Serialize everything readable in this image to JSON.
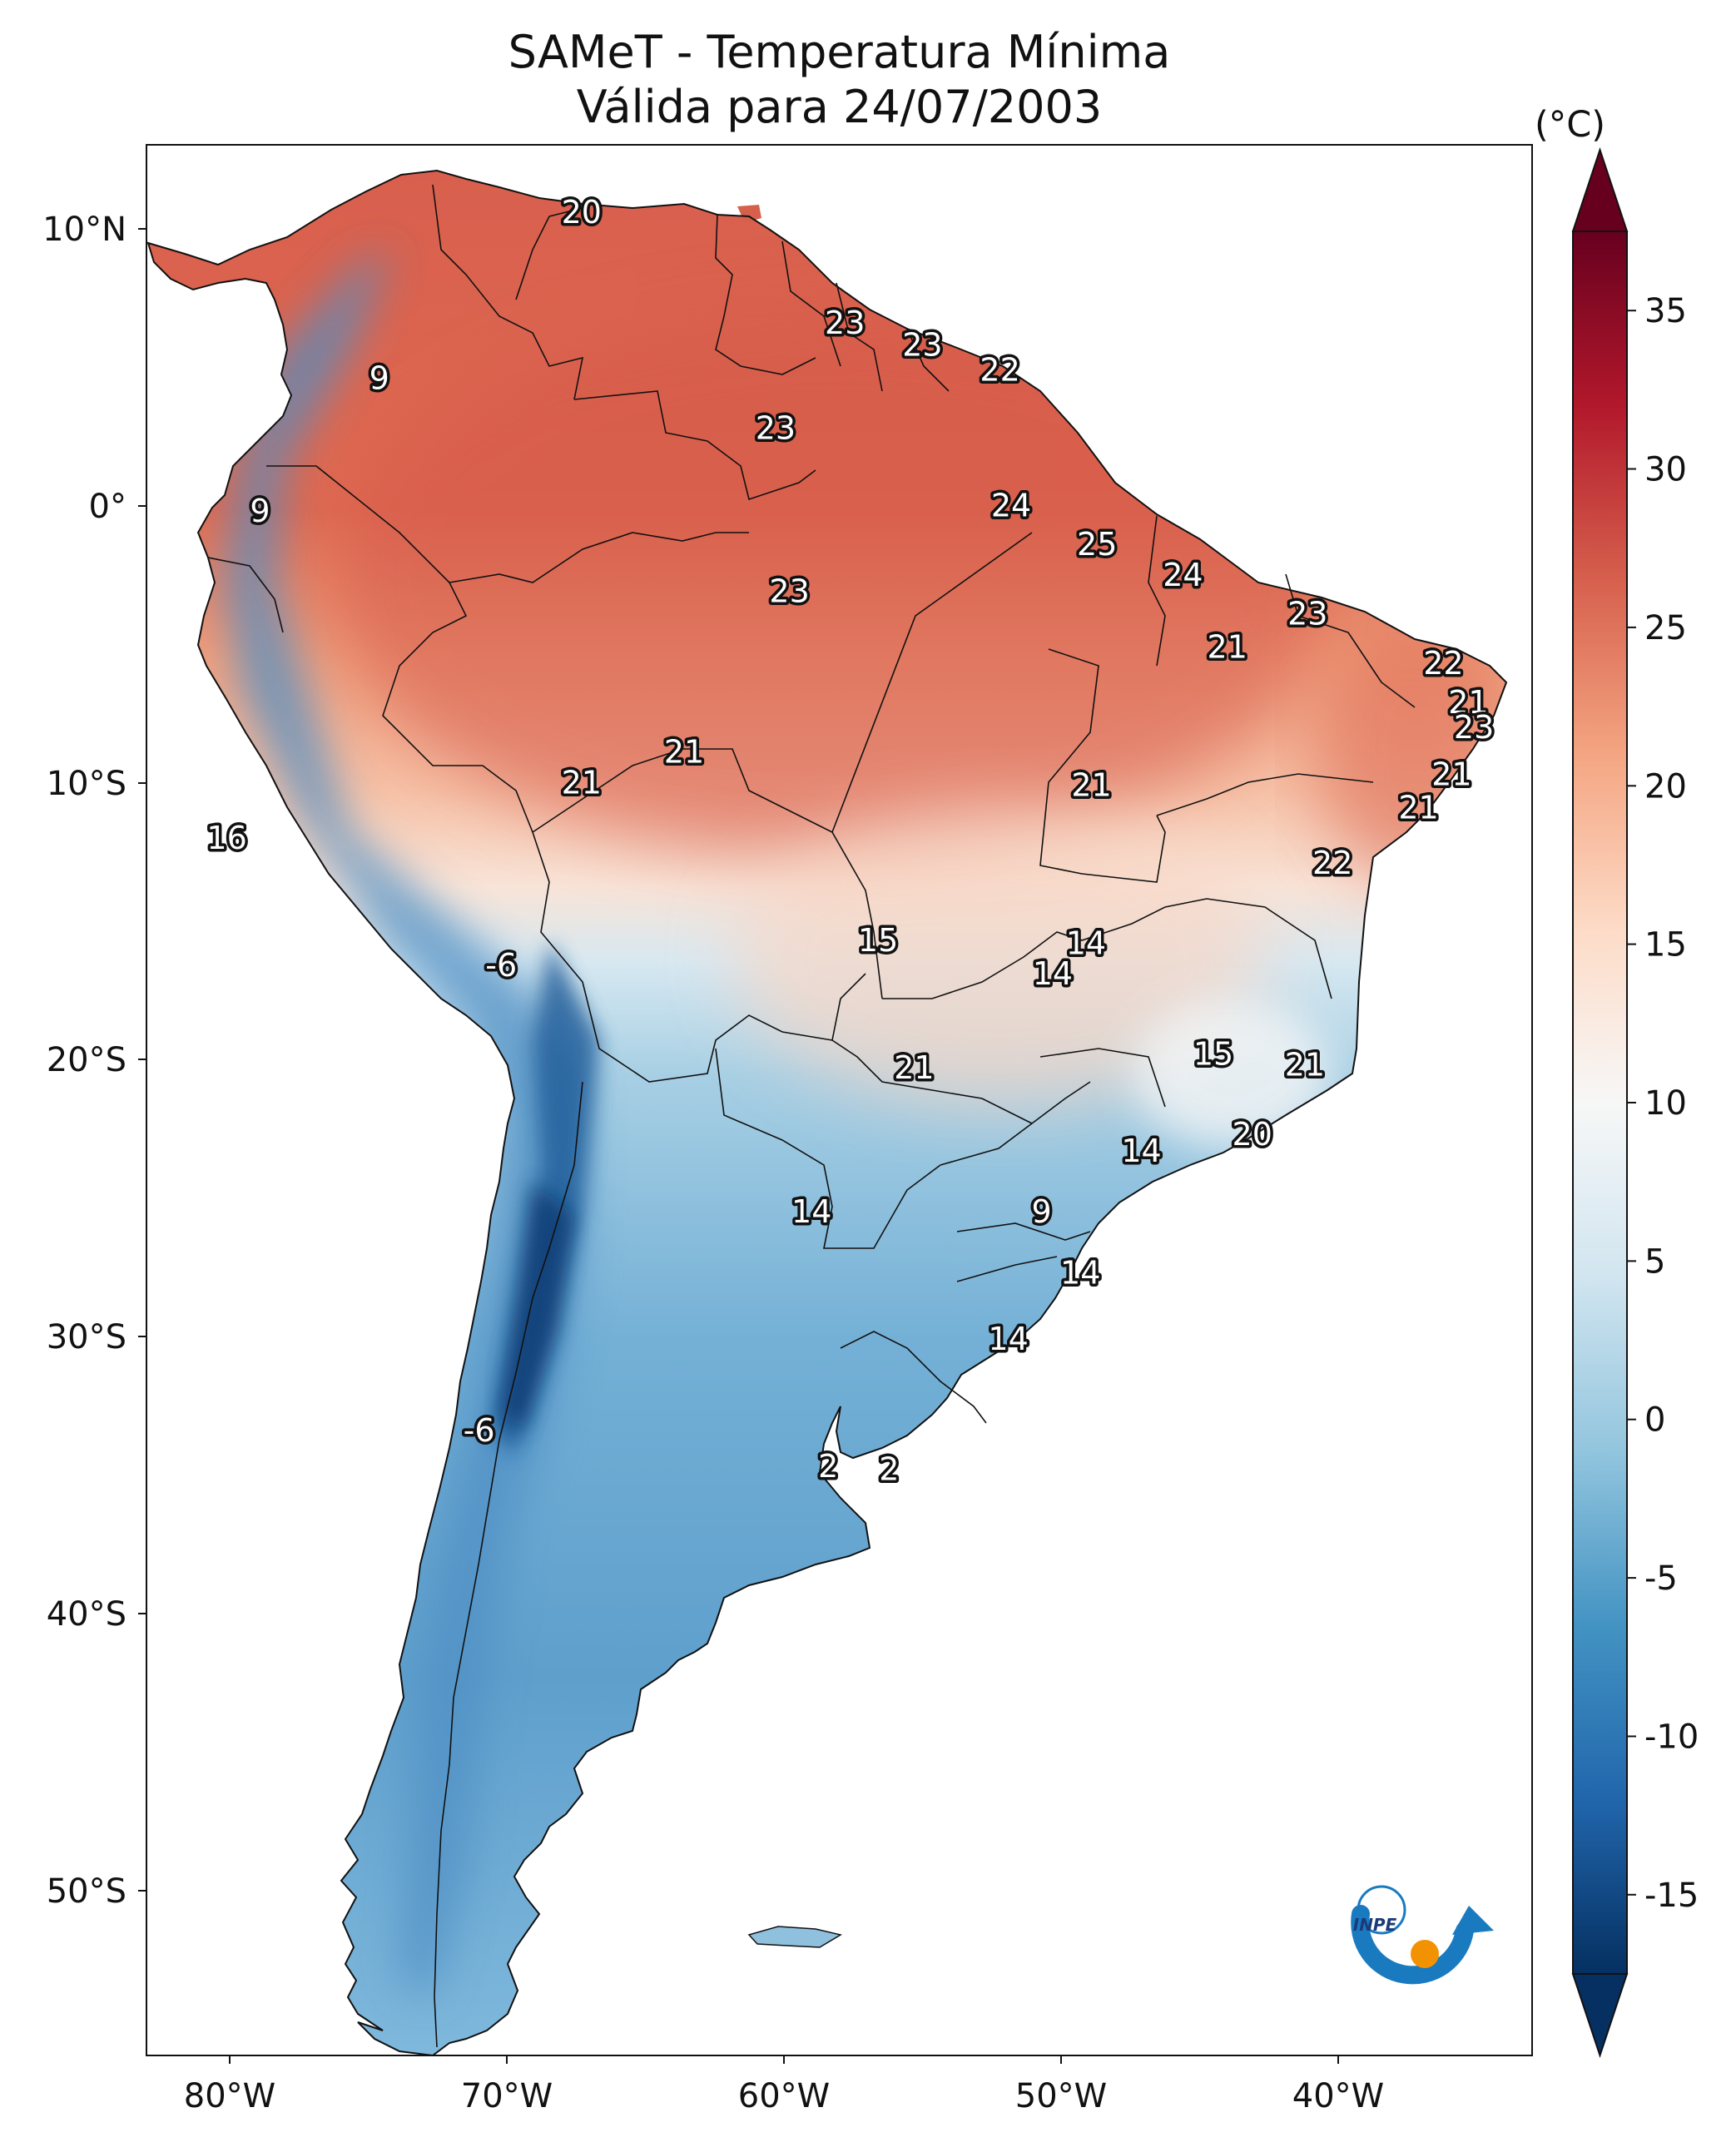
{
  "title_line1": "SAMeT - Temperatura Mínima",
  "title_line2": "Válida para 24/07/2003",
  "colorbar": {
    "unit": "(°C)",
    "ticks": [
      "35",
      "30",
      "25",
      "20",
      "15",
      "10",
      "5",
      "0",
      "-5",
      "-10",
      "-15"
    ],
    "colors": [
      "#053061",
      "#2166ac",
      "#4393c3",
      "#92c5de",
      "#d1e5f0",
      "#f7f7f7",
      "#fddbc7",
      "#f4a582",
      "#d6604d",
      "#b2182b",
      "#67001f"
    ]
  },
  "axes": {
    "lon_ticks": [
      "80°W",
      "70°W",
      "60°W",
      "50°W",
      "40°W"
    ],
    "lat_ticks": [
      "10°N",
      "0°",
      "10°S",
      "20°S",
      "30°S",
      "40°S",
      "50°S"
    ]
  },
  "map": {
    "lon_range": [
      -83,
      -33
    ],
    "lat_range": [
      -56,
      13
    ],
    "labels": [
      {
        "lon": -67.3,
        "lat": 10.6,
        "text": "20"
      },
      {
        "lon": -74.6,
        "lat": 4.6,
        "text": "9"
      },
      {
        "lon": -57.8,
        "lat": 6.6,
        "text": "23"
      },
      {
        "lon": -55.0,
        "lat": 5.8,
        "text": "23"
      },
      {
        "lon": -52.2,
        "lat": 4.9,
        "text": "22"
      },
      {
        "lon": -60.3,
        "lat": 2.8,
        "text": "23"
      },
      {
        "lon": -78.9,
        "lat": -0.2,
        "text": "9"
      },
      {
        "lon": -51.8,
        "lat": 0.0,
        "text": "24"
      },
      {
        "lon": -48.7,
        "lat": -1.4,
        "text": "25"
      },
      {
        "lon": -45.6,
        "lat": -2.5,
        "text": "24"
      },
      {
        "lon": -59.8,
        "lat": -3.1,
        "text": "23"
      },
      {
        "lon": -41.1,
        "lat": -3.9,
        "text": "23"
      },
      {
        "lon": -44.0,
        "lat": -5.1,
        "text": "21"
      },
      {
        "lon": -36.2,
        "lat": -5.7,
        "text": "22"
      },
      {
        "lon": -35.3,
        "lat": -7.1,
        "text": "21"
      },
      {
        "lon": -35.1,
        "lat": -8.0,
        "text": "23"
      },
      {
        "lon": -63.6,
        "lat": -8.9,
        "text": "21"
      },
      {
        "lon": -67.3,
        "lat": -10.0,
        "text": "21"
      },
      {
        "lon": -48.9,
        "lat": -10.1,
        "text": "21"
      },
      {
        "lon": -35.9,
        "lat": -9.7,
        "text": "21"
      },
      {
        "lon": -37.1,
        "lat": -10.9,
        "text": "21"
      },
      {
        "lon": -40.2,
        "lat": -12.9,
        "text": "22"
      },
      {
        "lon": -80.1,
        "lat": -12.0,
        "text": "16"
      },
      {
        "lon": -56.6,
        "lat": -15.7,
        "text": "15"
      },
      {
        "lon": -70.2,
        "lat": -16.6,
        "text": "-6"
      },
      {
        "lon": -49.1,
        "lat": -15.8,
        "text": "14"
      },
      {
        "lon": -50.3,
        "lat": -16.9,
        "text": "14"
      },
      {
        "lon": -44.5,
        "lat": -19.8,
        "text": "15"
      },
      {
        "lon": -55.3,
        "lat": -20.3,
        "text": "21"
      },
      {
        "lon": -41.2,
        "lat": -20.2,
        "text": "21"
      },
      {
        "lon": -43.1,
        "lat": -22.7,
        "text": "20"
      },
      {
        "lon": -47.1,
        "lat": -23.3,
        "text": "14"
      },
      {
        "lon": -59.0,
        "lat": -25.5,
        "text": "14"
      },
      {
        "lon": -50.7,
        "lat": -25.5,
        "text": "9"
      },
      {
        "lon": -49.3,
        "lat": -27.7,
        "text": "14"
      },
      {
        "lon": -51.9,
        "lat": -30.1,
        "text": "14"
      },
      {
        "lon": -71.0,
        "lat": -33.4,
        "text": "-6"
      },
      {
        "lon": -58.4,
        "lat": -34.7,
        "text": "2"
      },
      {
        "lon": -56.2,
        "lat": -34.8,
        "text": "2"
      }
    ]
  }
}
